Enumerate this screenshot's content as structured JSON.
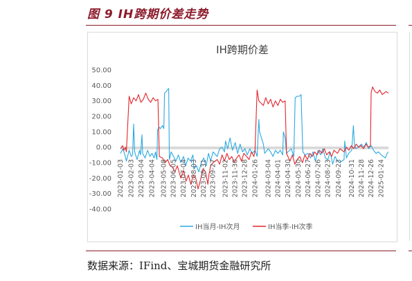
{
  "figure": {
    "title": "图 9 IH跨期价差走势",
    "source": "数据来源：IFind、宝城期货金融研究所"
  },
  "chart_data": {
    "type": "line",
    "title": "IH跨期价差",
    "xlabel": "",
    "ylabel": "",
    "ylim": [
      -40,
      50
    ],
    "yticks": [
      "50.00",
      "40.00",
      "30.00",
      "20.00",
      "10.00",
      "0.00",
      "-10.00",
      "-20.00",
      "-30.00",
      "-40.00"
    ],
    "yticks_values": [
      50,
      40,
      30,
      20,
      10,
      0,
      -10,
      -20,
      -30,
      -40
    ],
    "xticks": [
      "2023-01-03",
      "2023-02-03",
      "2023-03-04",
      "2023-04-04",
      "2023-05-08",
      "2023-06-05",
      "2023-07-04",
      "2023-08-03",
      "2023-08-31",
      "2023-09-27",
      "2023-11-02",
      "2023-11-30",
      "2023-12-28",
      "2024-01-26",
      "2024-03-04",
      "2024-04-01",
      "2024-04-30",
      "2024-05-30",
      "2024-06-27",
      "2024-07-26",
      "2024-08-23",
      "2024-09-23",
      "2024-10-31",
      "2024-11-28",
      "2024-12-26",
      "2025-01-24"
    ],
    "x_range": [
      "2023-01-03",
      "2025-02-14"
    ],
    "grid": false,
    "zero_band": true,
    "legend_position": "bottom",
    "colors": {
      "series1": "#29a9e0",
      "series2": "#e3242b",
      "axis_text": "#595959",
      "zero_band": "#d9d9d9"
    },
    "series": [
      {
        "name": "IH当月-IH次月",
        "points": [
          [
            "2023-01-03",
            -4
          ],
          [
            "2023-01-10",
            -1
          ],
          [
            "2023-01-17",
            -6
          ],
          [
            "2023-01-20",
            -9
          ],
          [
            "2023-01-28",
            -2
          ],
          [
            "2023-02-03",
            -6
          ],
          [
            "2023-02-07",
            -5
          ],
          [
            "2023-02-10",
            15
          ],
          [
            "2023-02-13",
            -3
          ],
          [
            "2023-02-20",
            -8
          ],
          [
            "2023-02-27",
            -2
          ],
          [
            "2023-03-02",
            -5
          ],
          [
            "2023-03-06",
            8
          ],
          [
            "2023-03-08",
            -4
          ],
          [
            "2023-03-15",
            -7
          ],
          [
            "2023-03-22",
            -2
          ],
          [
            "2023-03-29",
            -6
          ],
          [
            "2023-04-04",
            -4
          ],
          [
            "2023-04-10",
            -7
          ],
          [
            "2023-04-14",
            -3
          ],
          [
            "2023-04-18",
            -8
          ],
          [
            "2023-04-20",
            11
          ],
          [
            "2023-04-24",
            13
          ],
          [
            "2023-04-28",
            12
          ],
          [
            "2023-05-04",
            14
          ],
          [
            "2023-05-08",
            12
          ],
          [
            "2023-05-10",
            35
          ],
          [
            "2023-05-15",
            36
          ],
          [
            "2023-05-18",
            37
          ],
          [
            "2023-05-22",
            38
          ],
          [
            "2023-05-24",
            -8
          ],
          [
            "2023-05-29",
            -3
          ],
          [
            "2023-06-05",
            -6
          ],
          [
            "2023-06-12",
            -9
          ],
          [
            "2023-06-19",
            -5
          ],
          [
            "2023-06-26",
            -10
          ],
          [
            "2023-07-04",
            -6
          ],
          [
            "2023-07-10",
            -12
          ],
          [
            "2023-07-17",
            -7
          ],
          [
            "2023-07-24",
            -9
          ],
          [
            "2023-07-31",
            -5
          ],
          [
            "2023-08-03",
            -14
          ],
          [
            "2023-08-10",
            -12
          ],
          [
            "2023-08-17",
            -16
          ],
          [
            "2023-08-24",
            -10
          ],
          [
            "2023-08-31",
            -7
          ],
          [
            "2023-09-07",
            -12
          ],
          [
            "2023-09-14",
            -4
          ],
          [
            "2023-09-20",
            -9
          ],
          [
            "2023-09-27",
            -3
          ],
          [
            "2023-10-09",
            -6
          ],
          [
            "2023-10-16",
            -1
          ],
          [
            "2023-10-23",
            0
          ],
          [
            "2023-10-30",
            -3
          ],
          [
            "2023-11-02",
            4
          ],
          [
            "2023-11-08",
            -1
          ],
          [
            "2023-11-15",
            6
          ],
          [
            "2023-11-22",
            -2
          ],
          [
            "2023-11-30",
            3
          ],
          [
            "2023-12-07",
            -4
          ],
          [
            "2023-12-14",
            2
          ],
          [
            "2023-12-21",
            -3
          ],
          [
            "2023-12-28",
            -1
          ],
          [
            "2024-01-04",
            -5
          ],
          [
            "2024-01-11",
            -1
          ],
          [
            "2024-01-18",
            -4
          ],
          [
            "2024-01-26",
            -2
          ],
          [
            "2024-02-01",
            -6
          ],
          [
            "2024-02-06",
            18
          ],
          [
            "2024-02-08",
            10
          ],
          [
            "2024-02-19",
            2
          ],
          [
            "2024-02-23",
            -4
          ],
          [
            "2024-03-04",
            -1
          ],
          [
            "2024-03-11",
            -3
          ],
          [
            "2024-03-18",
            -6
          ],
          [
            "2024-03-25",
            -2
          ],
          [
            "2024-04-01",
            -4
          ],
          [
            "2024-04-08",
            -2
          ],
          [
            "2024-04-15",
            -5
          ],
          [
            "2024-04-17",
            10
          ],
          [
            "2024-04-22",
            6
          ],
          [
            "2024-04-26",
            -4
          ],
          [
            "2024-04-30",
            -3
          ],
          [
            "2024-05-10",
            -1
          ],
          [
            "2024-05-17",
            -6
          ],
          [
            "2024-05-21",
            32
          ],
          [
            "2024-05-27",
            33
          ],
          [
            "2024-06-03",
            33
          ],
          [
            "2024-06-07",
            34
          ],
          [
            "2024-06-12",
            -3
          ],
          [
            "2024-06-19",
            -5
          ],
          [
            "2024-06-27",
            -4
          ],
          [
            "2024-07-04",
            -7
          ],
          [
            "2024-07-11",
            -3
          ],
          [
            "2024-07-18",
            -9
          ],
          [
            "2024-07-26",
            -2
          ],
          [
            "2024-08-02",
            -5
          ],
          [
            "2024-08-09",
            -1
          ],
          [
            "2024-08-16",
            -7
          ],
          [
            "2024-08-23",
            -8
          ],
          [
            "2024-08-30",
            -3
          ],
          [
            "2024-09-06",
            -11
          ],
          [
            "2024-09-13",
            -6
          ],
          [
            "2024-09-20",
            -9
          ],
          [
            "2024-09-26",
            -10
          ],
          [
            "2024-10-09",
            -8
          ],
          [
            "2024-10-11",
            4
          ],
          [
            "2024-10-16",
            -7
          ],
          [
            "2024-10-22",
            -4
          ],
          [
            "2024-10-31",
            -2
          ],
          [
            "2024-11-05",
            14
          ],
          [
            "2024-11-08",
            1
          ],
          [
            "2024-11-12",
            -1
          ],
          [
            "2024-11-19",
            0
          ],
          [
            "2024-11-28",
            2
          ],
          [
            "2024-12-05",
            0
          ],
          [
            "2024-12-12",
            3
          ],
          [
            "2024-12-19",
            -1
          ],
          [
            "2024-12-26",
            1
          ],
          [
            "2025-01-02",
            -2
          ],
          [
            "2025-01-09",
            -4
          ],
          [
            "2025-01-16",
            -3
          ],
          [
            "2025-01-24",
            -5
          ],
          [
            "2025-02-05",
            -7
          ],
          [
            "2025-02-10",
            -4
          ],
          [
            "2025-02-14",
            -3
          ]
        ]
      },
      {
        "name": "IH当季-IH次季",
        "points": [
          [
            "2023-01-03",
            -1
          ],
          [
            "2023-01-09",
            1
          ],
          [
            "2023-01-13",
            -2
          ],
          [
            "2023-01-17",
            0
          ],
          [
            "2023-01-20",
            -3
          ],
          [
            "2023-01-28",
            33
          ],
          [
            "2023-02-03",
            28
          ],
          [
            "2023-02-10",
            32
          ],
          [
            "2023-02-17",
            30
          ],
          [
            "2023-02-24",
            34
          ],
          [
            "2023-03-03",
            29
          ],
          [
            "2023-03-10",
            31
          ],
          [
            "2023-03-17",
            35
          ],
          [
            "2023-03-24",
            31
          ],
          [
            "2023-03-31",
            29
          ],
          [
            "2023-04-07",
            32
          ],
          [
            "2023-04-14",
            30
          ],
          [
            "2023-04-21",
            31
          ],
          [
            "2023-04-25",
            -6
          ],
          [
            "2023-05-04",
            -7
          ],
          [
            "2023-05-12",
            -10
          ],
          [
            "2023-05-19",
            -8
          ],
          [
            "2023-05-26",
            -12
          ],
          [
            "2023-06-02",
            -13
          ],
          [
            "2023-06-09",
            -16
          ],
          [
            "2023-06-16",
            -12
          ],
          [
            "2023-06-26",
            -20
          ],
          [
            "2023-07-04",
            -15
          ],
          [
            "2023-07-11",
            -22
          ],
          [
            "2023-07-18",
            -18
          ],
          [
            "2023-07-25",
            -24
          ],
          [
            "2023-08-01",
            -18
          ],
          [
            "2023-08-08",
            -20
          ],
          [
            "2023-08-15",
            -27
          ],
          [
            "2023-08-22",
            -21
          ],
          [
            "2023-08-29",
            -14
          ],
          [
            "2023-09-05",
            -16
          ],
          [
            "2023-09-12",
            -24
          ],
          [
            "2023-09-15",
            -18
          ],
          [
            "2023-09-20",
            -12
          ],
          [
            "2023-09-27",
            -10
          ],
          [
            "2023-10-09",
            -8
          ],
          [
            "2023-10-16",
            -11
          ],
          [
            "2023-10-23",
            -5
          ],
          [
            "2023-10-30",
            -9
          ],
          [
            "2023-11-06",
            -4
          ],
          [
            "2023-11-13",
            -8
          ],
          [
            "2023-11-20",
            -6
          ],
          [
            "2023-11-27",
            -10
          ],
          [
            "2023-12-04",
            -7
          ],
          [
            "2023-12-11",
            -5
          ],
          [
            "2023-12-18",
            -9
          ],
          [
            "2023-12-25",
            -4
          ],
          [
            "2024-01-02",
            -6
          ],
          [
            "2024-01-09",
            -8
          ],
          [
            "2024-01-16",
            -3
          ],
          [
            "2024-01-23",
            -6
          ],
          [
            "2024-01-26",
            -2
          ],
          [
            "2024-02-01",
            37
          ],
          [
            "2024-02-06",
            30
          ],
          [
            "2024-02-19",
            27
          ],
          [
            "2024-02-26",
            32
          ],
          [
            "2024-03-04",
            28
          ],
          [
            "2024-03-11",
            31
          ],
          [
            "2024-03-18",
            26
          ],
          [
            "2024-03-25",
            30
          ],
          [
            "2024-04-01",
            27
          ],
          [
            "2024-04-08",
            31
          ],
          [
            "2024-04-15",
            29
          ],
          [
            "2024-04-22",
            30
          ],
          [
            "2024-04-26",
            -4
          ],
          [
            "2024-05-06",
            -9
          ],
          [
            "2024-05-13",
            -5
          ],
          [
            "2024-05-20",
            -11
          ],
          [
            "2024-05-27",
            -8
          ],
          [
            "2024-06-03",
            -6
          ],
          [
            "2024-06-11",
            -10
          ],
          [
            "2024-06-18",
            -5
          ],
          [
            "2024-06-25",
            -8
          ],
          [
            "2024-07-02",
            -4
          ],
          [
            "2024-07-09",
            -6
          ],
          [
            "2024-07-16",
            -3
          ],
          [
            "2024-07-23",
            -5
          ],
          [
            "2024-07-30",
            -2
          ],
          [
            "2024-08-06",
            -4
          ],
          [
            "2024-08-13",
            -1
          ],
          [
            "2024-08-20",
            -5
          ],
          [
            "2024-08-27",
            -3
          ],
          [
            "2024-09-03",
            -6
          ],
          [
            "2024-09-10",
            -2
          ],
          [
            "2024-09-20",
            -4
          ],
          [
            "2024-09-27",
            -1
          ],
          [
            "2024-10-09",
            -3
          ],
          [
            "2024-10-16",
            0
          ],
          [
            "2024-10-23",
            -2
          ],
          [
            "2024-10-30",
            1
          ],
          [
            "2024-11-06",
            -1
          ],
          [
            "2024-11-13",
            2
          ],
          [
            "2024-11-20",
            0
          ],
          [
            "2024-11-27",
            1
          ],
          [
            "2024-12-04",
            -1
          ],
          [
            "2024-12-11",
            2
          ],
          [
            "2024-12-18",
            0
          ],
          [
            "2024-12-24",
            1
          ],
          [
            "2024-12-26",
            35
          ],
          [
            "2024-12-30",
            39
          ],
          [
            "2025-01-06",
            36
          ],
          [
            "2025-01-13",
            35
          ],
          [
            "2025-01-20",
            37
          ],
          [
            "2025-01-27",
            34
          ],
          [
            "2025-02-07",
            36
          ],
          [
            "2025-02-14",
            35
          ]
        ]
      }
    ]
  }
}
